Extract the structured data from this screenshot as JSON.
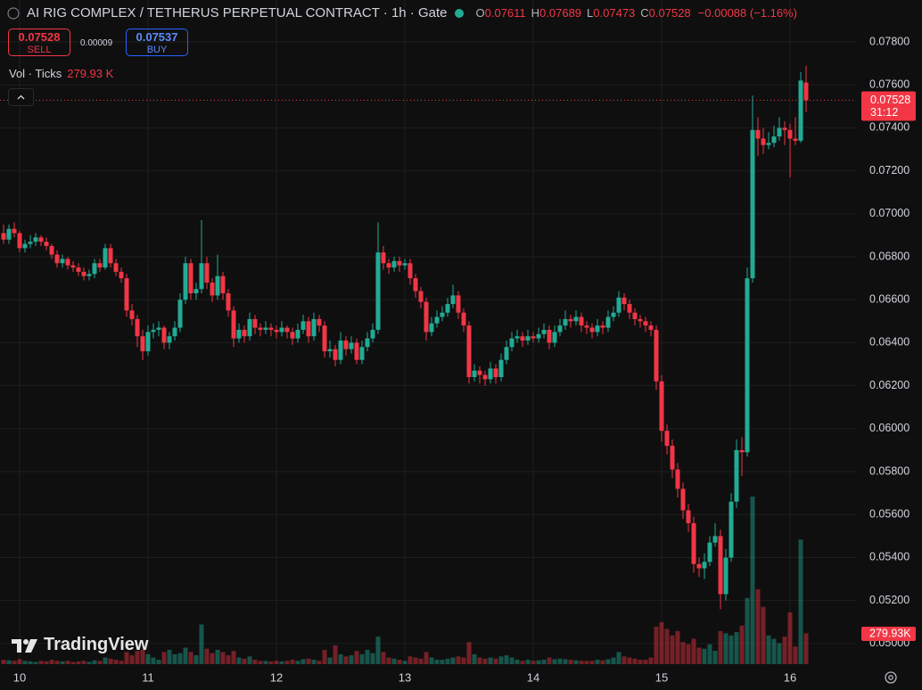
{
  "ui": {
    "symbol": "AI RIG COMPLEX / TETHERUS PERPETUAL CONTRACT · 1h · Gate",
    "ohlc": [
      {
        "label": "O",
        "value": "0.07611"
      },
      {
        "label": "H",
        "value": "0.07689"
      },
      {
        "label": "L",
        "value": "0.07473"
      },
      {
        "label": "C",
        "value": "0.07528"
      }
    ],
    "change": "−0.00088 (−1.16%)",
    "sell": {
      "price": "0.07528",
      "label": "SELL"
    },
    "spread": "0.00009",
    "buy": {
      "price": "0.07537",
      "label": "BUY"
    },
    "volume_title": "Vol · Ticks",
    "volume_value": "279.93 K",
    "price_label": "0.07528",
    "countdown": "31:12",
    "volume_label": "279.93K",
    "logo": "TradingView"
  },
  "chart_data": {
    "type": "candlestick",
    "up_color": "#22ab94",
    "down_color": "#f23645",
    "grid": true,
    "ylim": [
      0.04904,
      0.07995
    ],
    "yticks": [
      {
        "value": 0.05,
        "label": "0.05000"
      },
      {
        "value": 0.052,
        "label": "0.05200"
      },
      {
        "value": 0.054,
        "label": "0.05400"
      },
      {
        "value": 0.056,
        "label": "0.05600"
      },
      {
        "value": 0.058,
        "label": "0.05800"
      },
      {
        "value": 0.06,
        "label": "0.06000"
      },
      {
        "value": 0.062,
        "label": "0.06200"
      },
      {
        "value": 0.064,
        "label": "0.06400"
      },
      {
        "value": 0.066,
        "label": "0.06600"
      },
      {
        "value": 0.068,
        "label": "0.06800"
      },
      {
        "value": 0.07,
        "label": "0.07000"
      },
      {
        "value": 0.072,
        "label": "0.07200"
      },
      {
        "value": 0.074,
        "label": "0.07400"
      },
      {
        "value": 0.076,
        "label": "0.07600"
      },
      {
        "value": 0.078,
        "label": "0.07800"
      }
    ],
    "categories": [
      null,
      null,
      null,
      "10",
      null,
      null,
      null,
      null,
      null,
      null,
      null,
      null,
      null,
      null,
      null,
      null,
      null,
      null,
      null,
      null,
      null,
      null,
      null,
      null,
      null,
      null,
      null,
      "11",
      null,
      null,
      null,
      null,
      null,
      null,
      null,
      null,
      null,
      null,
      null,
      null,
      null,
      null,
      null,
      null,
      null,
      null,
      null,
      null,
      null,
      null,
      null,
      "12",
      null,
      null,
      null,
      null,
      null,
      null,
      null,
      null,
      null,
      null,
      null,
      null,
      null,
      null,
      null,
      null,
      null,
      null,
      null,
      null,
      null,
      null,
      null,
      "13",
      null,
      null,
      null,
      null,
      null,
      null,
      null,
      null,
      null,
      null,
      null,
      null,
      null,
      null,
      null,
      null,
      null,
      null,
      null,
      null,
      null,
      null,
      null,
      "14",
      null,
      null,
      null,
      null,
      null,
      null,
      null,
      null,
      null,
      null,
      null,
      null,
      null,
      null,
      null,
      null,
      null,
      null,
      null,
      null,
      null,
      null,
      null,
      "15",
      null,
      null,
      null,
      null,
      null,
      null,
      null,
      null,
      null,
      null,
      null,
      null,
      null,
      null,
      null,
      null,
      null,
      null,
      null,
      null,
      null,
      null,
      null,
      "16",
      null,
      null,
      null
    ],
    "open": [
      0.0691,
      0.0688,
      0.0693,
      0.0691,
      0.0684,
      0.0686,
      0.0687,
      0.0689,
      0.0687,
      0.0685,
      0.0681,
      0.0677,
      0.0679,
      0.0676,
      0.0675,
      0.0673,
      0.0671,
      0.0672,
      0.0677,
      0.0675,
      0.0684,
      0.0677,
      0.0673,
      0.067,
      0.0655,
      0.0651,
      0.0643,
      0.0636,
      0.0645,
      0.0646,
      0.0647,
      0.064,
      0.0643,
      0.0647,
      0.066,
      0.0677,
      0.0663,
      0.0665,
      0.0677,
      0.0668,
      0.0662,
      0.0671,
      0.0663,
      0.0655,
      0.0642,
      0.0646,
      0.0643,
      0.0651,
      0.0647,
      0.0646,
      0.0647,
      0.0646,
      0.0645,
      0.0647,
      0.0645,
      0.0642,
      0.0646,
      0.065,
      0.0643,
      0.0651,
      0.0648,
      0.0636,
      0.0637,
      0.0632,
      0.0641,
      0.0637,
      0.064,
      0.0632,
      0.0638,
      0.0642,
      0.0646,
      0.0682,
      0.0677,
      0.0675,
      0.0678,
      0.0676,
      0.0677,
      0.067,
      0.0664,
      0.0659,
      0.0645,
      0.0649,
      0.0652,
      0.0654,
      0.0658,
      0.0662,
      0.0654,
      0.0648,
      0.0624,
      0.0627,
      0.0625,
      0.0623,
      0.0628,
      0.0624,
      0.0632,
      0.0638,
      0.0642,
      0.0643,
      0.0641,
      0.0643,
      0.0642,
      0.0644,
      0.0646,
      0.064,
      0.0645,
      0.0648,
      0.0651,
      0.065,
      0.0652,
      0.0648,
      0.0647,
      0.0645,
      0.0648,
      0.0647,
      0.0652,
      0.0654,
      0.0661,
      0.0658,
      0.0654,
      0.0651,
      0.065,
      0.0648,
      0.0646,
      0.0622,
      0.0599,
      0.0592,
      0.0581,
      0.0572,
      0.0562,
      0.0556,
      0.0537,
      0.0535,
      0.0538,
      0.0547,
      0.055,
      0.0523,
      0.054,
      0.0566,
      0.059,
      0.0589,
      0.067,
      0.0739,
      0.0735,
      0.0732,
      0.0733,
      0.0736,
      0.074,
      0.0739,
      0.0735,
      0.0734,
      0.07611
    ],
    "high": [
      0.0695,
      0.0695,
      0.0696,
      0.0692,
      0.0688,
      0.069,
      0.0691,
      0.069,
      0.0689,
      0.0686,
      0.0683,
      0.0681,
      0.068,
      0.0678,
      0.0677,
      0.0675,
      0.0674,
      0.0679,
      0.0679,
      0.0686,
      0.0686,
      0.0679,
      0.0675,
      0.0672,
      0.0658,
      0.0653,
      0.0646,
      0.0648,
      0.0649,
      0.065,
      0.0648,
      0.0645,
      0.065,
      0.0663,
      0.068,
      0.0679,
      0.0668,
      0.0697,
      0.068,
      0.067,
      0.0681,
      0.0673,
      0.0665,
      0.0657,
      0.0649,
      0.0648,
      0.0654,
      0.0653,
      0.0649,
      0.065,
      0.0649,
      0.0648,
      0.065,
      0.0648,
      0.0647,
      0.0649,
      0.0653,
      0.0652,
      0.0654,
      0.0653,
      0.065,
      0.0641,
      0.0639,
      0.0645,
      0.0643,
      0.0643,
      0.0642,
      0.0641,
      0.0645,
      0.0649,
      0.0696,
      0.0685,
      0.0679,
      0.068,
      0.068,
      0.0679,
      0.0679,
      0.0672,
      0.0666,
      0.0661,
      0.0652,
      0.0655,
      0.0657,
      0.0661,
      0.0667,
      0.0664,
      0.0656,
      0.065,
      0.063,
      0.0629,
      0.0627,
      0.0631,
      0.063,
      0.0635,
      0.0641,
      0.0645,
      0.0646,
      0.0645,
      0.0646,
      0.0645,
      0.0647,
      0.0649,
      0.0648,
      0.0648,
      0.0651,
      0.0655,
      0.0653,
      0.0655,
      0.0654,
      0.065,
      0.0649,
      0.0651,
      0.065,
      0.0655,
      0.0657,
      0.0664,
      0.0663,
      0.066,
      0.0656,
      0.0653,
      0.0652,
      0.065,
      0.0648,
      0.0625,
      0.0602,
      0.0595,
      0.0584,
      0.0575,
      0.0565,
      0.0559,
      0.054,
      0.0542,
      0.055,
      0.0556,
      0.0553,
      0.0544,
      0.057,
      0.0595,
      0.0596,
      0.0675,
      0.0755,
      0.0745,
      0.074,
      0.0738,
      0.0741,
      0.0745,
      0.0743,
      0.0742,
      0.0745,
      0.0766,
      0.07689
    ],
    "low": [
      0.0686,
      0.0686,
      0.0689,
      0.0682,
      0.0682,
      0.0684,
      0.0685,
      0.0685,
      0.0683,
      0.0679,
      0.0675,
      0.0675,
      0.0674,
      0.0673,
      0.0671,
      0.0669,
      0.0669,
      0.067,
      0.0673,
      0.0674,
      0.0675,
      0.0671,
      0.0668,
      0.0652,
      0.0648,
      0.0638,
      0.0632,
      0.0634,
      0.0642,
      0.0643,
      0.0637,
      0.0637,
      0.0641,
      0.0645,
      0.0658,
      0.066,
      0.066,
      0.0663,
      0.0665,
      0.0659,
      0.066,
      0.066,
      0.0652,
      0.0638,
      0.064,
      0.064,
      0.0641,
      0.0644,
      0.0643,
      0.0644,
      0.0643,
      0.0642,
      0.0643,
      0.0642,
      0.0639,
      0.064,
      0.0644,
      0.064,
      0.0641,
      0.0645,
      0.0633,
      0.0633,
      0.0629,
      0.063,
      0.0634,
      0.0635,
      0.063,
      0.063,
      0.0636,
      0.064,
      0.0644,
      0.0674,
      0.0672,
      0.0673,
      0.0673,
      0.0674,
      0.0667,
      0.0661,
      0.0656,
      0.0641,
      0.0643,
      0.0647,
      0.065,
      0.0652,
      0.0656,
      0.0651,
      0.0645,
      0.0621,
      0.0622,
      0.0621,
      0.062,
      0.0621,
      0.0621,
      0.0622,
      0.063,
      0.0636,
      0.064,
      0.0638,
      0.0639,
      0.064,
      0.064,
      0.0642,
      0.0637,
      0.0638,
      0.0643,
      0.0646,
      0.0647,
      0.0648,
      0.0645,
      0.0644,
      0.0642,
      0.0643,
      0.0644,
      0.0645,
      0.065,
      0.0652,
      0.0655,
      0.0651,
      0.0648,
      0.0647,
      0.0645,
      0.0643,
      0.0618,
      0.0594,
      0.0588,
      0.0577,
      0.0568,
      0.0558,
      0.0552,
      0.0533,
      0.0531,
      0.053,
      0.0536,
      0.0545,
      0.0516,
      0.052,
      0.0538,
      0.0563,
      0.0578,
      0.0587,
      0.0668,
      0.0727,
      0.0728,
      0.073,
      0.0731,
      0.0734,
      0.0732,
      0.0717,
      0.0732,
      0.0733,
      0.07473
    ],
    "close": [
      0.0688,
      0.0693,
      0.0691,
      0.0684,
      0.0686,
      0.0687,
      0.0689,
      0.0687,
      0.0685,
      0.0681,
      0.0677,
      0.0679,
      0.0676,
      0.0675,
      0.0673,
      0.0671,
      0.0672,
      0.0677,
      0.0675,
      0.0684,
      0.0677,
      0.0673,
      0.067,
      0.0655,
      0.0651,
      0.0643,
      0.0636,
      0.0645,
      0.0646,
      0.0647,
      0.064,
      0.0643,
      0.0647,
      0.066,
      0.0677,
      0.0663,
      0.0665,
      0.0677,
      0.0668,
      0.0662,
      0.0671,
      0.0663,
      0.0655,
      0.0642,
      0.0646,
      0.0643,
      0.0651,
      0.0647,
      0.0646,
      0.0647,
      0.0646,
      0.0645,
      0.0647,
      0.0645,
      0.0642,
      0.0646,
      0.065,
      0.0643,
      0.0651,
      0.0648,
      0.0636,
      0.0637,
      0.0632,
      0.0641,
      0.0637,
      0.064,
      0.0632,
      0.0638,
      0.0642,
      0.0646,
      0.0682,
      0.0677,
      0.0675,
      0.0678,
      0.0676,
      0.0677,
      0.067,
      0.0664,
      0.0659,
      0.0645,
      0.0649,
      0.0652,
      0.0654,
      0.0658,
      0.0662,
      0.0654,
      0.0648,
      0.0624,
      0.0627,
      0.0625,
      0.0623,
      0.0628,
      0.0624,
      0.0632,
      0.0638,
      0.0642,
      0.0643,
      0.0641,
      0.0643,
      0.0642,
      0.0644,
      0.0646,
      0.064,
      0.0645,
      0.0648,
      0.0651,
      0.065,
      0.0652,
      0.0648,
      0.0647,
      0.0645,
      0.0648,
      0.0647,
      0.0652,
      0.0654,
      0.0661,
      0.0658,
      0.0654,
      0.0651,
      0.065,
      0.0648,
      0.0646,
      0.0622,
      0.0599,
      0.0592,
      0.0581,
      0.0572,
      0.0562,
      0.0556,
      0.0537,
      0.0535,
      0.0538,
      0.0547,
      0.055,
      0.0523,
      0.054,
      0.0566,
      0.059,
      0.0589,
      0.067,
      0.0739,
      0.0735,
      0.0732,
      0.0733,
      0.0736,
      0.074,
      0.0739,
      0.0735,
      0.0734,
      0.0762,
      0.07528
    ],
    "volume": [
      40000,
      35000,
      30000,
      45000,
      30000,
      25000,
      20000,
      30000,
      25000,
      40000,
      30000,
      25000,
      30000,
      20000,
      25000,
      30000,
      20000,
      35000,
      30000,
      60000,
      50000,
      40000,
      30000,
      110000,
      80000,
      120000,
      130000,
      90000,
      60000,
      40000,
      110000,
      130000,
      90000,
      100000,
      150000,
      110000,
      80000,
      360000,
      140000,
      100000,
      130000,
      110000,
      80000,
      120000,
      60000,
      50000,
      70000,
      40000,
      30000,
      30000,
      25000,
      30000,
      25000,
      30000,
      40000,
      30000,
      45000,
      50000,
      40000,
      30000,
      130000,
      60000,
      170000,
      90000,
      70000,
      80000,
      120000,
      90000,
      130000,
      100000,
      250000,
      110000,
      60000,
      50000,
      40000,
      30000,
      70000,
      60000,
      50000,
      110000,
      60000,
      40000,
      40000,
      50000,
      60000,
      70000,
      60000,
      200000,
      90000,
      60000,
      50000,
      60000,
      50000,
      70000,
      80000,
      60000,
      40000,
      30000,
      40000,
      30000,
      35000,
      40000,
      60000,
      45000,
      50000,
      45000,
      40000,
      35000,
      30000,
      30000,
      30000,
      40000,
      35000,
      45000,
      60000,
      110000,
      70000,
      60000,
      50000,
      40000,
      40000,
      60000,
      340000,
      380000,
      320000,
      260000,
      300000,
      200000,
      180000,
      230000,
      150000,
      140000,
      180000,
      120000,
      300000,
      280000,
      260000,
      290000,
      350000,
      600000,
      1520000,
      680000,
      520000,
      260000,
      230000,
      190000,
      250000,
      470000,
      160000,
      1130000,
      279930
    ]
  }
}
